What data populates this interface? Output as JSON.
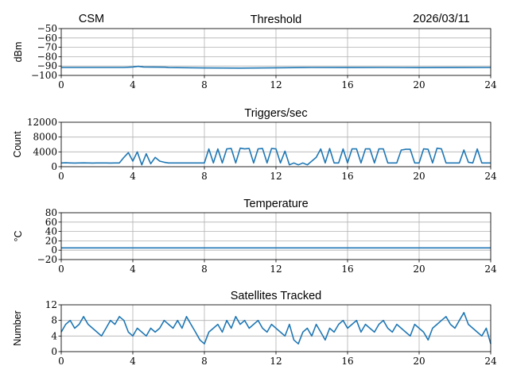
{
  "header": {
    "left": "CSM",
    "right": "2026/03/11"
  },
  "colors": {
    "line": "#1f77b4",
    "grid": "#b0b0b0"
  },
  "chart_data": [
    {
      "type": "line",
      "title": "Threshold",
      "xlabel": "",
      "ylabel": "dBm",
      "xlim": [
        0,
        24
      ],
      "ylim": [
        -100,
        -50
      ],
      "xticks": [
        0,
        4,
        8,
        12,
        16,
        20,
        24
      ],
      "yticks": [
        -50,
        -60,
        -70,
        -80,
        -90,
        -100
      ],
      "ytick_labels": [
        "−50",
        "−60",
        "−70",
        "−80",
        "−90",
        "−100"
      ],
      "grid": true,
      "series": [
        {
          "name": "threshold",
          "x": [
            0,
            3.5,
            4.0,
            4.3,
            4.6,
            5.8,
            6.0,
            8.0,
            10,
            12,
            14,
            16,
            18,
            20,
            22,
            24
          ],
          "y": [
            -91.5,
            -91.5,
            -91.0,
            -90.3,
            -91.0,
            -91.3,
            -91.6,
            -92.0,
            -92.2,
            -91.9,
            -91.5,
            -91.6,
            -91.5,
            -91.7,
            -91.6,
            -91.5
          ]
        }
      ]
    },
    {
      "type": "line",
      "title": "Triggers/sec",
      "xlabel": "",
      "ylabel": "Count",
      "xlim": [
        0,
        24
      ],
      "ylim": [
        0,
        12000
      ],
      "xticks": [
        0,
        4,
        8,
        12,
        16,
        20,
        24
      ],
      "yticks": [
        0,
        4000,
        8000,
        12000
      ],
      "ytick_labels": [
        "0",
        "4000",
        "8000",
        "12000"
      ],
      "grid": true,
      "series": [
        {
          "name": "triggers",
          "step": 0.25,
          "y": [
            1000,
            1050,
            1000,
            980,
            1000,
            1020,
            1000,
            990,
            1000,
            1010,
            1000,
            990,
            1000,
            1000,
            2500,
            3800,
            1500,
            4000,
            500,
            3500,
            800,
            2500,
            1500,
            1200,
            1000,
            1000,
            1000,
            1000,
            1000,
            1000,
            1000,
            1000,
            1000,
            4800,
            1000,
            4800,
            1000,
            4800,
            4900,
            1000,
            5000,
            4800,
            4900,
            1000,
            4800,
            4900,
            1000,
            4900,
            4800,
            1000,
            4200,
            500,
            1000,
            500,
            1000,
            500,
            1500,
            2500,
            4800,
            1000,
            4900,
            1000,
            1000,
            4800,
            1000,
            4800,
            4800,
            1000,
            4800,
            4800,
            1000,
            4800,
            4800,
            1000,
            1000,
            1000,
            4500,
            4700,
            4700,
            1000,
            1000,
            4800,
            4700,
            1000,
            5000,
            4800,
            1000,
            1000,
            1000,
            1000,
            4500,
            1200,
            1000,
            4800,
            1000,
            1000,
            1000
          ]
        }
      ]
    },
    {
      "type": "line",
      "title": "Temperature",
      "xlabel": "",
      "ylabel": "°C",
      "xlim": [
        0,
        24
      ],
      "ylim": [
        -20,
        80
      ],
      "xticks": [
        0,
        4,
        8,
        12,
        16,
        20,
        24
      ],
      "yticks": [
        -20,
        0,
        20,
        40,
        60,
        80
      ],
      "ytick_labels": [
        "−20",
        "0",
        "20",
        "40",
        "60",
        "80"
      ],
      "grid": true,
      "series": [
        {
          "name": "temperature",
          "x": [
            0,
            6,
            12,
            18,
            24
          ],
          "y": [
            5,
            5,
            5,
            5,
            5
          ]
        }
      ]
    },
    {
      "type": "line",
      "title": "Satellites Tracked",
      "xlabel": "",
      "ylabel": "Number",
      "xlim": [
        0,
        24
      ],
      "ylim": [
        0,
        12
      ],
      "xticks": [
        0,
        4,
        8,
        12,
        16,
        20,
        24
      ],
      "yticks": [
        0,
        4,
        8,
        12
      ],
      "ytick_labels": [
        "0",
        "4",
        "8",
        "12"
      ],
      "grid": true,
      "series": [
        {
          "name": "satellites",
          "step": 0.25,
          "y": [
            5,
            7,
            8,
            6,
            7,
            9,
            7,
            6,
            5,
            4,
            6,
            8,
            7,
            9,
            8,
            5,
            4,
            6,
            5,
            4,
            6,
            5,
            6,
            8,
            7,
            6,
            8,
            6,
            9,
            7,
            5,
            3,
            2,
            5,
            6,
            7,
            5,
            8,
            6,
            9,
            7,
            8,
            6,
            7,
            8,
            6,
            5,
            7,
            6,
            5,
            4,
            7,
            3,
            2,
            5,
            6,
            4,
            7,
            5,
            3,
            6,
            5,
            7,
            8,
            6,
            7,
            8,
            5,
            7,
            6,
            5,
            7,
            8,
            6,
            5,
            7,
            6,
            5,
            4,
            7,
            6,
            5,
            3,
            6,
            7,
            8,
            9,
            7,
            6,
            8,
            10,
            7,
            6,
            5,
            4,
            6,
            2
          ]
        }
      ]
    }
  ]
}
